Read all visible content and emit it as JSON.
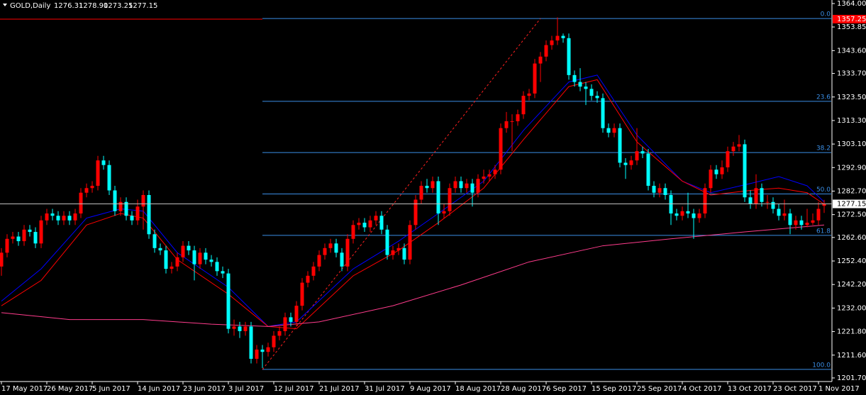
{
  "chart_data": {
    "type": "candlestick",
    "symbol": "GOLD,Daily",
    "quote": [
      "1276.31",
      "1278.90",
      "1273.25",
      "1277.15"
    ],
    "up_color": "#ff0000",
    "down_color": "#00ffff",
    "grid": false,
    "ylim": [
      1200.15,
      1365.54
    ],
    "yticks": [
      {
        "value": 1364,
        "label": "1364.00"
      },
      1353.85,
      {
        "value": 1343.6,
        "label": "1343.60"
      },
      {
        "value": 1333.7,
        "label": "1333.70"
      },
      {
        "value": 1323.5,
        "label": "1323.50"
      },
      {
        "value": 1313.3,
        "label": "1313.30"
      },
      {
        "value": 1303.1,
        "label": "1303.10"
      },
      {
        "value": 1292.9,
        "label": "1292.90"
      },
      {
        "value": 1282.7,
        "label": "1282.70"
      },
      {
        "value": 1272.5,
        "label": "1272.50"
      },
      {
        "value": 1262.6,
        "label": "1262.60"
      },
      {
        "value": 1252.4,
        "label": "1252.40"
      },
      {
        "value": 1242.2,
        "label": "1242.20"
      },
      {
        "value": 1232,
        "label": "1232.00"
      },
      {
        "value": 1221.8,
        "label": "1221.80"
      },
      {
        "value": 1211.6,
        "label": "1211.60"
      },
      {
        "value": 1201.7,
        "label": "1201.70"
      }
    ],
    "categories": [
      "17 May 2017",
      null,
      null,
      null,
      null,
      null,
      null,
      null,
      "26 May 2017",
      null,
      null,
      null,
      null,
      null,
      null,
      null,
      "5 Jun 2017",
      null,
      null,
      null,
      null,
      null,
      null,
      null,
      "14 Jun 2017",
      null,
      null,
      null,
      null,
      null,
      null,
      null,
      "23 Jun 2017",
      null,
      null,
      null,
      null,
      null,
      null,
      null,
      "3 Jul 2017",
      null,
      null,
      null,
      null,
      null,
      null,
      null,
      "12 Jul 2017",
      null,
      null,
      null,
      null,
      null,
      null,
      null,
      "21 Jul 2017",
      null,
      null,
      null,
      null,
      null,
      null,
      null,
      "31 Jul 2017",
      null,
      null,
      null,
      null,
      null,
      null,
      null,
      "9 Aug 2017",
      null,
      null,
      null,
      null,
      null,
      null,
      null,
      "18 Aug 2017",
      null,
      null,
      null,
      null,
      null,
      null,
      null,
      "28 Aug 2017",
      null,
      null,
      null,
      null,
      null,
      null,
      null,
      "6 Sep 2017",
      null,
      null,
      null,
      null,
      null,
      null,
      null,
      "15 Sep 2017",
      null,
      null,
      null,
      null,
      null,
      null,
      null,
      "25 Sep 2017",
      null,
      null,
      null,
      null,
      null,
      null,
      null,
      "4 Oct 2017",
      null,
      null,
      null,
      null,
      null,
      null,
      null,
      "13 Oct 2017",
      null,
      null,
      null,
      null,
      null,
      null,
      null,
      "23 Oct 2017",
      null,
      null,
      null,
      null,
      null,
      null,
      null,
      "1 Nov 2017",
      null
    ],
    "open": [
      1250,
      1256,
      1262,
      1263,
      1261,
      1266,
      1265,
      1260,
      1270,
      1273,
      1272,
      1270,
      1272,
      1270,
      1273,
      1282,
      1284,
      1285,
      1296,
      1294,
      1283,
      1274,
      1278,
      1272,
      1270,
      1276,
      1281,
      1264,
      1258,
      1257,
      1249,
      1250,
      1254,
      1259,
      1257,
      1251,
      1256,
      1253,
      1252,
      1248,
      1247,
      1223,
      1224,
      1222,
      1224,
      1210,
      1214,
      1213,
      1215,
      1220,
      1222,
      1228,
      1226,
      1233,
      1243,
      1246,
      1250,
      1255,
      1258,
      1260,
      1256,
      1250,
      1262,
      1268,
      1269,
      1267,
      1270,
      1272,
      1266,
      1255,
      1257,
      1258,
      1253,
      1268,
      1279,
      1285,
      1284,
      1287,
      1273,
      1274,
      1284,
      1287,
      1284,
      1286,
      1282,
      1288,
      1289,
      1290,
      1292,
      1310,
      1313,
      1313,
      1316,
      1324,
      1325,
      1338,
      1341,
      1346,
      1348,
      1350,
      1349,
      1333,
      1330,
      1328,
      1327,
      1324,
      1323,
      1310,
      1308,
      1310,
      1295,
      1294,
      1296,
      1300,
      1299,
      1285,
      1282,
      1284,
      1281,
      1273,
      1272,
      1274,
      1273,
      1271,
      1273,
      1284,
      1292,
      1290,
      1293,
      1300,
      1302,
      1303,
      1280,
      1277,
      1284,
      1278,
      1278,
      1275,
      1272,
      1273,
      1268,
      1270,
      1268,
      1269,
      1270,
      1276.31
    ],
    "high": [
      1258,
      1264,
      1265,
      1265,
      1268,
      1268,
      1267,
      1272,
      1275,
      1275,
      1274,
      1274,
      1274,
      1275,
      1284,
      1286,
      1287,
      1298,
      1298,
      1296,
      1285,
      1280,
      1280,
      1274,
      1279,
      1283,
      1283,
      1266,
      1260,
      1259,
      1252,
      1256,
      1261,
      1261,
      1259,
      1258,
      1258,
      1255,
      1254,
      1250,
      1249,
      1227,
      1226,
      1226,
      1226,
      1216,
      1216,
      1217,
      1222,
      1224,
      1230,
      1230,
      1235,
      1245,
      1248,
      1252,
      1257,
      1260,
      1262,
      1262,
      1258,
      1264,
      1270,
      1271,
      1271,
      1272,
      1274,
      1274,
      1268,
      1259,
      1260,
      1260,
      1270,
      1281,
      1287,
      1288,
      1289,
      1289,
      1277,
      1286,
      1289,
      1289,
      1288,
      1288,
      1290,
      1292,
      1292,
      1294,
      1312,
      1317,
      1316,
      1318,
      1326,
      1327,
      1340,
      1343,
      1348,
      1350,
      1358,
      1351,
      1351,
      1335,
      1336,
      1330,
      1329,
      1326,
      1325,
      1312,
      1312,
      1312,
      1297,
      1298,
      1310,
      1302,
      1301,
      1287,
      1286,
      1286,
      1283,
      1275,
      1276,
      1282,
      1275,
      1275,
      1286,
      1294,
      1294,
      1296,
      1302,
      1304,
      1307,
      1305,
      1283,
      1290,
      1286,
      1281,
      1280,
      1277,
      1279,
      1275,
      1272,
      1272,
      1275,
      1273,
      1278,
      1278.9
    ],
    "low": [
      1246,
      1254,
      1260,
      1259,
      1259,
      1263,
      1258,
      1258,
      1268,
      1270,
      1268,
      1268,
      1268,
      1268,
      1271,
      1280,
      1282,
      1283,
      1292,
      1281,
      1272,
      1272,
      1270,
      1268,
      1268,
      1266,
      1262,
      1256,
      1255,
      1247,
      1247,
      1248,
      1252,
      1255,
      1244,
      1249,
      1251,
      1250,
      1246,
      1245,
      1221,
      1220,
      1219,
      1220,
      1208,
      1208,
      1206,
      1211,
      1213,
      1218,
      1220,
      1224,
      1224,
      1231,
      1241,
      1244,
      1248,
      1253,
      1256,
      1254,
      1248,
      1248,
      1260,
      1266,
      1265,
      1265,
      1268,
      1264,
      1253,
      1253,
      1255,
      1251,
      1251,
      1266,
      1277,
      1282,
      1282,
      1268,
      1271,
      1272,
      1282,
      1282,
      1282,
      1276,
      1280,
      1286,
      1287,
      1288,
      1290,
      1308,
      1300,
      1311,
      1314,
      1322,
      1323,
      1330,
      1339,
      1344,
      1346,
      1347,
      1331,
      1328,
      1326,
      1320,
      1322,
      1321,
      1308,
      1306,
      1306,
      1293,
      1288,
      1292,
      1294,
      1297,
      1283,
      1280,
      1280,
      1279,
      1268,
      1270,
      1270,
      1271,
      1262,
      1269,
      1271,
      1282,
      1288,
      1288,
      1291,
      1298,
      1300,
      1278,
      1275,
      1275,
      1276,
      1275,
      1273,
      1270,
      1270,
      1264,
      1266,
      1266,
      1267,
      1268,
      1268,
      1273.25
    ],
    "close": [
      1256,
      1262,
      1263,
      1261,
      1266,
      1265,
      1260,
      1270,
      1273,
      1272,
      1270,
      1272,
      1270,
      1273,
      1282,
      1284,
      1285,
      1296,
      1294,
      1283,
      1274,
      1278,
      1272,
      1270,
      1276,
      1281,
      1264,
      1258,
      1257,
      1249,
      1250,
      1254,
      1259,
      1257,
      1251,
      1256,
      1253,
      1252,
      1248,
      1247,
      1223,
      1224,
      1222,
      1224,
      1210,
      1214,
      1213,
      1215,
      1220,
      1222,
      1228,
      1226,
      1233,
      1243,
      1246,
      1250,
      1255,
      1258,
      1260,
      1256,
      1250,
      1262,
      1268,
      1269,
      1267,
      1270,
      1272,
      1266,
      1255,
      1257,
      1258,
      1253,
      1268,
      1279,
      1285,
      1284,
      1287,
      1273,
      1274,
      1284,
      1287,
      1284,
      1286,
      1282,
      1288,
      1289,
      1290,
      1292,
      1310,
      1313,
      1313,
      1316,
      1324,
      1325,
      1338,
      1341,
      1346,
      1348,
      1350,
      1349,
      1333,
      1330,
      1328,
      1327,
      1324,
      1323,
      1310,
      1308,
      1310,
      1295,
      1294,
      1296,
      1300,
      1299,
      1285,
      1282,
      1284,
      1281,
      1273,
      1272,
      1274,
      1273,
      1271,
      1273,
      1284,
      1292,
      1290,
      1293,
      1300,
      1302,
      1303,
      1280,
      1277,
      1284,
      1278,
      1278,
      1275,
      1272,
      1273,
      1268,
      1270,
      1268,
      1269,
      1270,
      1275,
      1277.15
    ],
    "indicators": [
      {
        "color": "#0000ff",
        "x": [
          0,
          7,
          15,
          21,
          25,
          31,
          40,
          47,
          52,
          62,
          70,
          77,
          85,
          92,
          100,
          105,
          112,
          120,
          125,
          132,
          137,
          142,
          145
        ],
        "values": [
          1235,
          1249,
          1271,
          1275,
          1274,
          1256,
          1241,
          1224,
          1226,
          1249,
          1261,
          1273,
          1287,
          1309,
          1330,
          1333,
          1307,
          1287,
          1282,
          1286,
          1289,
          1285,
          1278
        ]
      },
      {
        "color": "#ff0000",
        "x": [
          0,
          7,
          15,
          21,
          25,
          31,
          40,
          47,
          52,
          62,
          70,
          77,
          85,
          92,
          100,
          105,
          112,
          120,
          125,
          132,
          137,
          142,
          145
        ],
        "values": [
          1233,
          1244,
          1268,
          1273,
          1271,
          1253,
          1238,
          1224,
          1223,
          1246,
          1257,
          1269,
          1284,
          1305,
          1328,
          1331,
          1304,
          1287,
          1281,
          1283,
          1284,
          1282,
          1277
        ]
      },
      {
        "color": "#ff3c8c",
        "x": [
          0,
          12,
          25,
          37,
          47,
          56,
          69,
          81,
          93,
          106,
          118,
          131,
          145
        ],
        "values": [
          1230,
          1227,
          1227,
          1225,
          1224,
          1226,
          1233,
          1242,
          1252,
          1259,
          1262,
          1265,
          1268
        ]
      }
    ],
    "fibonacci": {
      "color": "#3a8ee6",
      "trend_color": "#ff2020",
      "start": 46,
      "end": 95,
      "levels": [
        {
          "value": 0,
          "label": "0.0"
        },
        23.6,
        38.2,
        {
          "value": 50,
          "label": "50.0"
        },
        61.8,
        {
          "value": 100,
          "label": "100.0"
        }
      ],
      "prices": [
        1357.5,
        1321.6,
        1299.4,
        1281.45,
        1263.5,
        1205.4
      ]
    },
    "hline": {
      "price": 1357.25,
      "color": "#ff0000",
      "end": 46
    },
    "current_price": 1277.15
  }
}
